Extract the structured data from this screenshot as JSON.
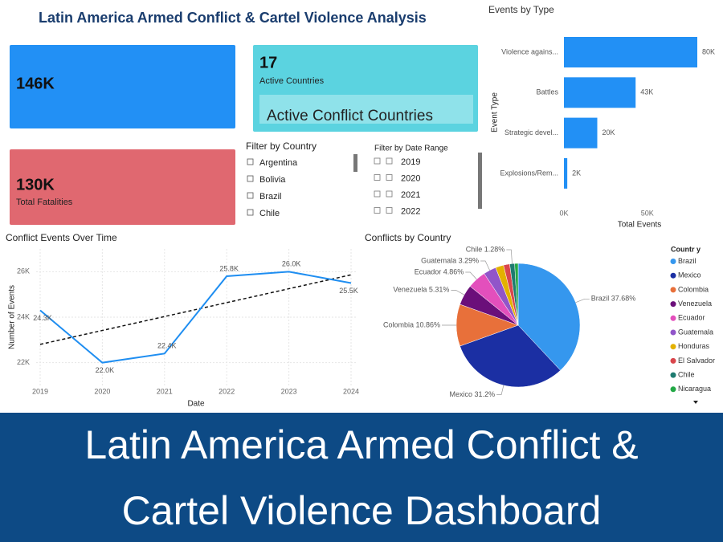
{
  "header": {
    "title": "Latin America Armed Conflict & Cartel Violence Analysis"
  },
  "cards": [
    {
      "value": "146K"
    },
    {
      "value": "17",
      "label": "Active Countries"
    },
    {
      "value": "130K",
      "label": "Total Fatalities"
    }
  ],
  "active_box": "Active Conflict Countries",
  "country_filter": {
    "title": "Filter by Country",
    "options": [
      "Argentina",
      "Bolivia",
      "Brazil",
      "Chile"
    ]
  },
  "date_filter": {
    "title": "Filter by Date Range",
    "options": [
      "2019",
      "2020",
      "2021",
      "2022"
    ]
  },
  "banner": [
    "Latin America Armed Conflict &",
    "Cartel Violence Dashboard"
  ],
  "chart_data": [
    {
      "type": "hbar",
      "title": "Events by Type",
      "x_label": "Total Events",
      "y_label": "Event Type",
      "categories": [
        "Violence agains...",
        "Battles",
        "Strategic devel...",
        "Explosions/Rem..."
      ],
      "values": [
        80000,
        43000,
        20000,
        2000
      ],
      "value_labels": [
        "80K",
        "43K",
        "20K",
        "2K"
      ],
      "color": "#2290f5",
      "xlim": [
        0,
        80000
      ],
      "xticks": [
        {
          "value": 0,
          "label": "0K"
        },
        {
          "value": 50000,
          "label": "50K"
        }
      ]
    },
    {
      "type": "line",
      "title": "Conflict Events Over Time",
      "x_label": "Date",
      "y_label": "Number of Events",
      "x": [
        2019,
        2020,
        2021,
        2022,
        2023,
        2024
      ],
      "values": [
        24300,
        22000,
        22400,
        25800,
        26000,
        25500
      ],
      "value_labels": [
        "24.3K",
        "22.0K",
        "22.4K",
        "25.8K",
        "26.0K",
        "25.5K"
      ],
      "color": "#1f8ef1",
      "xlim": [
        2019,
        2024
      ],
      "xticks": [
        2019,
        2020,
        2021,
        2022,
        2023,
        2024
      ],
      "ylim": [
        21000,
        27000
      ],
      "yticks": [
        {
          "value": 22000,
          "label": "22K"
        },
        {
          "value": 24000,
          "label": "24K"
        },
        {
          "value": 26000,
          "label": "26K"
        }
      ],
      "grid": true,
      "trend_line": true
    },
    {
      "type": "pie",
      "title": "Conflicts by Country",
      "legend_title": "Countr y",
      "categories": [
        "Brazil",
        "Mexico",
        "Colombia",
        "Venezuela",
        "Ecuador",
        "Guatemala",
        "Honduras",
        "El Salvador",
        "Chile",
        "Nicaragua"
      ],
      "values": [
        37.68,
        31.2,
        10.86,
        5.31,
        4.86,
        3.29,
        2.1,
        1.6,
        1.28,
        0.9
      ],
      "value_labels": [
        "Brazil 37.68%",
        "Mexico 31.2%",
        "Colombia 10.86%",
        "Venezuela 5.31%",
        "Ecuador 4.86%",
        "Guatemala 3.29%",
        null,
        null,
        "Chile 1.28%",
        null
      ],
      "colors": [
        "#3597ee",
        "#1b2fa3",
        "#e8703a",
        "#6b0f7a",
        "#e34fbc",
        "#9155c9",
        "#e3b100",
        "#d9464c",
        "#1e7b70",
        "#22a845"
      ]
    }
  ]
}
